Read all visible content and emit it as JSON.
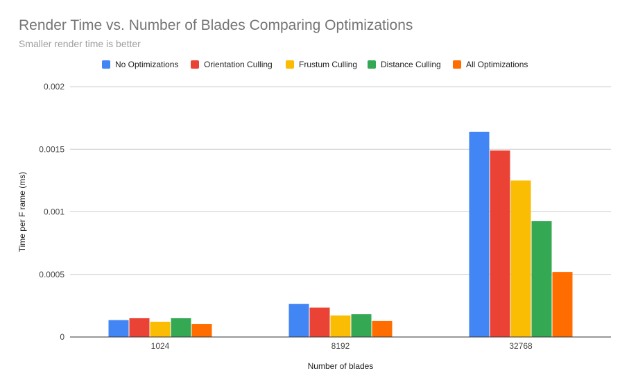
{
  "chart_data": {
    "type": "bar",
    "title": "Render Time vs. Number of Blades Comparing Optimizations",
    "subtitle": "Smaller render time is better",
    "xlabel": "Number of blades",
    "ylabel": "Time per F rame (ms)",
    "categories": [
      "1024",
      "8192",
      "32768"
    ],
    "ylim": [
      0,
      0.002
    ],
    "yticks": [
      0,
      0.0005,
      0.001,
      0.0015,
      0.002
    ],
    "ytick_labels": [
      "0",
      "0.0005",
      "0.001",
      "0.0015",
      "0.002"
    ],
    "grid": true,
    "legend_position": "top",
    "series": [
      {
        "name": "No Optimizations",
        "color": "#4285f4",
        "values": [
          0.000135,
          0.000265,
          0.00164
        ]
      },
      {
        "name": "Orientation Culling",
        "color": "#ea4335",
        "values": [
          0.00015,
          0.000235,
          0.00149
        ]
      },
      {
        "name": "Frustum Culling",
        "color": "#fbbc04",
        "values": [
          0.000122,
          0.000172,
          0.00125
        ]
      },
      {
        "name": "Distance Culling",
        "color": "#34a853",
        "values": [
          0.00015,
          0.000182,
          0.000925
        ]
      },
      {
        "name": "All Optimizations",
        "color": "#ff6d01",
        "values": [
          0.000105,
          0.000128,
          0.00052
        ]
      }
    ]
  }
}
